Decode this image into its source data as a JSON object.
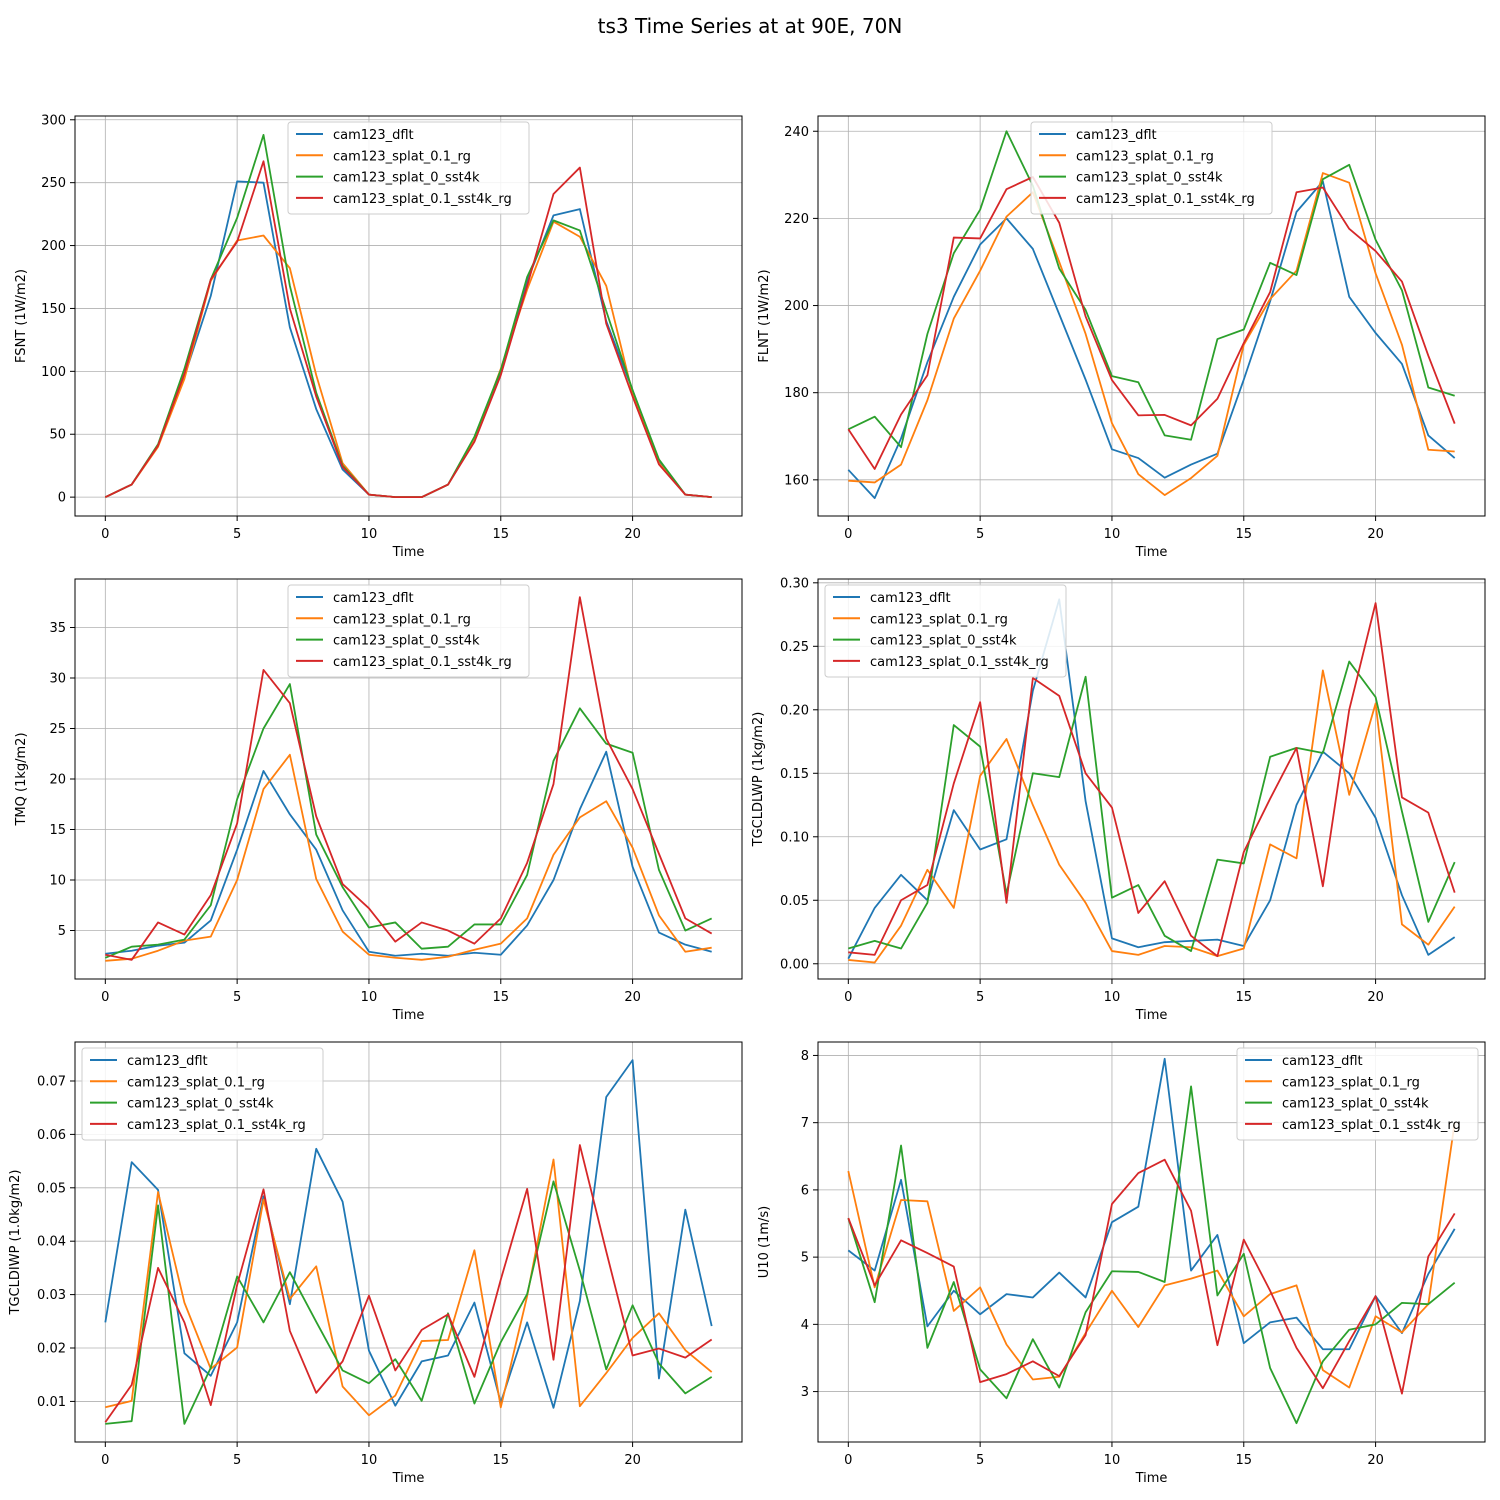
{
  "figure_title": "ts3 Time Series at at 90E, 70N",
  "colors": {
    "cam123_dflt": "#1f77b4",
    "cam123_splat_0.1_rg": "#ff7f0e",
    "cam123_splat_0_sst4k": "#2ca02c",
    "cam123_splat_0.1_sst4k_rg": "#d62728"
  },
  "chart_data": [
    {
      "type": "line",
      "id": "fsnt",
      "xlabel": "Time",
      "ylabel": "FSNT (1W/m2)",
      "xlim": [
        -1.15,
        24.15
      ],
      "ylim": [
        -15,
        303
      ],
      "xticks": [
        0,
        5,
        10,
        15,
        20
      ],
      "yticks": [
        0,
        50,
        100,
        150,
        200,
        250,
        300
      ],
      "legend_position": "upper-center",
      "grid": true,
      "x": [
        0,
        1,
        2,
        3,
        4,
        5,
        6,
        7,
        8,
        9,
        10,
        11,
        12,
        13,
        14,
        15,
        16,
        17,
        18,
        19,
        20,
        21,
        22,
        23
      ],
      "series": [
        {
          "name": "cam123_dflt",
          "values": [
            0,
            10,
            41,
            96,
            160,
            251,
            250,
            135,
            70,
            22,
            2,
            0,
            0,
            10,
            45,
            100,
            172,
            224,
            229,
            140,
            85,
            28,
            2,
            0
          ]
        },
        {
          "name": "cam123_splat_0.1_rg",
          "values": [
            0,
            10,
            40,
            94,
            172,
            204,
            208,
            182,
            97,
            27,
            2,
            0,
            0,
            10,
            45,
            102,
            165,
            219,
            207,
            168,
            82,
            27,
            2,
            0
          ]
        },
        {
          "name": "cam123_splat_0_sst4k",
          "values": [
            0,
            10,
            42,
            102,
            173,
            222,
            288,
            168,
            83,
            25,
            2,
            0,
            0,
            10,
            48,
            101,
            175,
            220,
            212,
            148,
            85,
            30,
            2,
            0
          ]
        },
        {
          "name": "cam123_splat_0.1_sst4k_rg",
          "values": [
            0,
            10,
            41,
            98,
            173,
            203,
            267,
            150,
            80,
            24,
            2,
            0,
            0,
            10,
            44,
            97,
            168,
            241,
            262,
            138,
            80,
            26,
            2,
            0
          ]
        }
      ]
    },
    {
      "type": "line",
      "id": "flnt",
      "xlabel": "Time",
      "ylabel": "FLNT (1W/m2)",
      "xlim": [
        -1.15,
        24.15
      ],
      "ylim": [
        151.7,
        243.5
      ],
      "xticks": [
        0,
        5,
        10,
        15,
        20
      ],
      "yticks": [
        160,
        180,
        200,
        220,
        240
      ],
      "legend_position": "upper-center",
      "grid": true,
      "x": [
        0,
        1,
        2,
        3,
        4,
        5,
        6,
        7,
        8,
        9,
        10,
        11,
        12,
        13,
        14,
        15,
        16,
        17,
        18,
        19,
        20,
        21,
        22,
        23
      ],
      "series": [
        {
          "name": "cam123_dflt",
          "values": [
            162.3,
            155.8,
            169.5,
            187,
            202,
            214,
            220,
            213,
            198,
            183,
            167,
            165,
            160.5,
            163.5,
            166,
            183,
            201,
            221.5,
            228.5,
            202,
            193.7,
            186.6,
            170.2,
            165
          ]
        },
        {
          "name": "cam123_splat_0.1_rg",
          "values": [
            159.8,
            159.4,
            163.5,
            178.3,
            197,
            208,
            220.4,
            226,
            210,
            193.5,
            173,
            161.3,
            156.5,
            160.4,
            165.5,
            191,
            201.5,
            208,
            230.4,
            228.2,
            207.4,
            191,
            166.9,
            166.5
          ]
        },
        {
          "name": "cam123_splat_0_sst4k",
          "values": [
            171.6,
            174.5,
            167.5,
            193.5,
            212,
            222,
            240,
            227.5,
            208.5,
            199,
            183.8,
            182.4,
            170.2,
            169.2,
            192.3,
            194.5,
            209.8,
            207,
            229,
            232.3,
            215.1,
            203.5,
            181.2,
            179.3
          ]
        },
        {
          "name": "cam123_splat_0.1_sst4k_rg",
          "values": [
            171.6,
            162.5,
            175,
            184,
            215.6,
            215.4,
            226.7,
            229.5,
            219,
            197.5,
            182.9,
            174.8,
            174.9,
            172.5,
            178.6,
            191.4,
            203.1,
            226,
            227.1,
            217.6,
            212.5,
            205.5,
            188.5,
            172.9
          ]
        }
      ]
    },
    {
      "type": "line",
      "id": "tmq",
      "xlabel": "Time",
      "ylabel": "TMQ (1kg/m2)",
      "xlim": [
        -1.15,
        24.15
      ],
      "ylim": [
        0.2,
        39.8
      ],
      "xticks": [
        0,
        5,
        10,
        15,
        20
      ],
      "yticks": [
        5,
        10,
        15,
        20,
        25,
        30,
        35
      ],
      "legend_position": "upper-center",
      "grid": true,
      "x": [
        0,
        1,
        2,
        3,
        4,
        5,
        6,
        7,
        8,
        9,
        10,
        11,
        12,
        13,
        14,
        15,
        16,
        17,
        18,
        19,
        20,
        21,
        22,
        23
      ],
      "series": [
        {
          "name": "cam123_dflt",
          "values": [
            2.7,
            3,
            3.5,
            3.8,
            6,
            13,
            20.8,
            16.5,
            13,
            7,
            2.9,
            2.5,
            2.7,
            2.5,
            2.8,
            2.6,
            5.5,
            10,
            17,
            22.7,
            11.3,
            4.8,
            3.6,
            2.9
          ]
        },
        {
          "name": "cam123_splat_0.1_rg",
          "values": [
            2,
            2.2,
            3,
            4,
            4.4,
            10,
            19,
            22.4,
            10.1,
            4.9,
            2.6,
            2.3,
            2.1,
            2.4,
            3.1,
            3.7,
            6.2,
            12.5,
            16.2,
            17.8,
            13.2,
            6.5,
            2.9,
            3.3
          ]
        },
        {
          "name": "cam123_splat_0_sst4k",
          "values": [
            2.3,
            3.4,
            3.6,
            4.1,
            7.5,
            18,
            25,
            29.4,
            14.5,
            9.3,
            5.3,
            5.8,
            3.2,
            3.4,
            5.6,
            5.6,
            10.5,
            21.8,
            27,
            23.5,
            22.6,
            11,
            5,
            6.2
          ]
        },
        {
          "name": "cam123_splat_0.1_sst4k_rg",
          "values": [
            2.6,
            2.1,
            5.8,
            4.6,
            8.5,
            15.6,
            30.8,
            27.5,
            16.3,
            9.6,
            7.2,
            3.9,
            5.8,
            5,
            3.7,
            6.2,
            11.7,
            19.5,
            38,
            24,
            19,
            12.6,
            6.2,
            4.7
          ]
        }
      ]
    },
    {
      "type": "line",
      "id": "tgcldlwp",
      "xlabel": "Time",
      "ylabel": "TGCLDLWP (1kg/m2)",
      "xlim": [
        -1.15,
        24.15
      ],
      "ylim": [
        -0.012,
        0.303
      ],
      "xticks": [
        0,
        5,
        10,
        15,
        20
      ],
      "yticks": [
        0,
        0.05,
        0.1,
        0.15,
        0.2,
        0.25,
        0.3
      ],
      "ytick_labels": [
        "0.00",
        "0.05",
        "0.10",
        "0.15",
        "0.20",
        "0.25",
        "0.30"
      ],
      "legend_position": "upper-left",
      "grid": true,
      "x": [
        0,
        1,
        2,
        3,
        4,
        5,
        6,
        7,
        8,
        9,
        10,
        11,
        12,
        13,
        14,
        15,
        16,
        17,
        18,
        19,
        20,
        21,
        22,
        23
      ],
      "series": [
        {
          "name": "cam123_dflt",
          "values": [
            0.004,
            0.044,
            0.07,
            0.05,
            0.121,
            0.09,
            0.098,
            0.215,
            0.287,
            0.128,
            0.02,
            0.013,
            0.017,
            0.018,
            0.019,
            0.014,
            0.05,
            0.125,
            0.167,
            0.15,
            0.115,
            0.054,
            0.007,
            0.021
          ]
        },
        {
          "name": "cam123_splat_0.1_rg",
          "values": [
            0.003,
            0.001,
            0.03,
            0.074,
            0.044,
            0.148,
            0.177,
            0.125,
            0.078,
            0.048,
            0.01,
            0.007,
            0.014,
            0.013,
            0.006,
            0.012,
            0.094,
            0.083,
            0.231,
            0.133,
            0.205,
            0.031,
            0.015,
            0.045
          ]
        },
        {
          "name": "cam123_splat_0_sst4k",
          "values": [
            0.012,
            0.018,
            0.012,
            0.048,
            0.188,
            0.171,
            0.055,
            0.15,
            0.147,
            0.226,
            0.052,
            0.062,
            0.022,
            0.01,
            0.082,
            0.079,
            0.163,
            0.17,
            0.166,
            0.238,
            0.21,
            0.12,
            0.033,
            0.08
          ]
        },
        {
          "name": "cam123_splat_0.1_sst4k_rg",
          "values": [
            0.009,
            0.007,
            0.05,
            0.062,
            0.142,
            0.206,
            0.048,
            0.225,
            0.211,
            0.15,
            0.123,
            0.04,
            0.065,
            0.022,
            0.006,
            0.088,
            0.13,
            0.17,
            0.061,
            0.2,
            0.284,
            0.131,
            0.119,
            0.056
          ]
        }
      ]
    },
    {
      "type": "line",
      "id": "tgcldiwp",
      "xlabel": "Time",
      "ylabel": "TGCLDIWP (1.0kg/m2)",
      "xlim": [
        -1.15,
        24.15
      ],
      "ylim": [
        0.0024,
        0.0773
      ],
      "xticks": [
        0,
        5,
        10,
        15,
        20
      ],
      "yticks": [
        0.01,
        0.02,
        0.03,
        0.04,
        0.05,
        0.06,
        0.07
      ],
      "ytick_labels": [
        "0.01",
        "0.02",
        "0.03",
        "0.04",
        "0.05",
        "0.06",
        "0.07"
      ],
      "legend_position": "upper-left",
      "grid": true,
      "x": [
        0,
        1,
        2,
        3,
        4,
        5,
        6,
        7,
        8,
        9,
        10,
        11,
        12,
        13,
        14,
        15,
        16,
        17,
        18,
        19,
        20,
        21,
        22,
        23
      ],
      "series": [
        {
          "name": "cam123_dflt",
          "values": [
            0.0248,
            0.0548,
            0.0496,
            0.019,
            0.0148,
            0.0248,
            0.0484,
            0.0282,
            0.0573,
            0.0474,
            0.0195,
            0.0092,
            0.0175,
            0.0186,
            0.0285,
            0.0098,
            0.0248,
            0.0088,
            0.0288,
            0.067,
            0.0739,
            0.0143,
            0.0459,
            0.0241
          ]
        },
        {
          "name": "cam123_splat_0.1_rg",
          "values": [
            0.0089,
            0.0101,
            0.0492,
            0.0285,
            0.0161,
            0.0201,
            0.0478,
            0.0292,
            0.0353,
            0.0128,
            0.0074,
            0.0111,
            0.0213,
            0.0215,
            0.0383,
            0.0089,
            0.0297,
            0.0553,
            0.0091,
            0.0153,
            0.0219,
            0.0265,
            0.0196,
            0.0155
          ]
        },
        {
          "name": "cam123_splat_0_sst4k",
          "values": [
            0.0058,
            0.0063,
            0.0467,
            0.0058,
            0.0163,
            0.0334,
            0.0248,
            0.0342,
            0.0249,
            0.0158,
            0.0134,
            0.0179,
            0.0101,
            0.0265,
            0.0096,
            0.0211,
            0.0301,
            0.0512,
            0.0345,
            0.016,
            0.028,
            0.0171,
            0.0115,
            0.0146
          ]
        },
        {
          "name": "cam123_splat_0.1_sst4k_rg",
          "values": [
            0.0061,
            0.0131,
            0.035,
            0.0248,
            0.0093,
            0.0318,
            0.0497,
            0.0232,
            0.0116,
            0.0175,
            0.0298,
            0.0158,
            0.0234,
            0.0263,
            0.0146,
            0.0328,
            0.0498,
            0.0178,
            0.058,
            0.0381,
            0.0186,
            0.0199,
            0.0182,
            0.0216
          ]
        }
      ]
    },
    {
      "type": "line",
      "id": "u10",
      "xlabel": "Time",
      "ylabel": "U10 (1m/s)",
      "xlim": [
        -1.15,
        24.15
      ],
      "ylim": [
        2.25,
        8.2
      ],
      "xticks": [
        0,
        5,
        10,
        15,
        20
      ],
      "yticks": [
        3,
        4,
        5,
        6,
        7,
        8
      ],
      "legend_position": "upper-right",
      "grid": true,
      "x": [
        0,
        1,
        2,
        3,
        4,
        5,
        6,
        7,
        8,
        9,
        10,
        11,
        12,
        13,
        14,
        15,
        16,
        17,
        18,
        19,
        20,
        21,
        22,
        23
      ],
      "series": [
        {
          "name": "cam123_dflt",
          "values": [
            5.1,
            4.8,
            6.15,
            3.97,
            4.5,
            4.15,
            4.45,
            4.4,
            4.77,
            4.4,
            5.52,
            5.75,
            7.95,
            4.8,
            5.33,
            3.72,
            4.03,
            4.1,
            3.63,
            3.63,
            4.42,
            3.87,
            4.75,
            5.42
          ]
        },
        {
          "name": "cam123_splat_0.1_rg",
          "values": [
            6.28,
            4.55,
            5.85,
            5.83,
            4.2,
            4.55,
            3.7,
            3.18,
            3.22,
            3.87,
            4.5,
            3.96,
            4.58,
            4.68,
            4.8,
            4.12,
            4.45,
            4.58,
            3.32,
            3.06,
            4.12,
            3.88,
            4.3,
            7.0
          ]
        },
        {
          "name": "cam123_splat_0_sst4k",
          "values": [
            5.58,
            4.33,
            6.66,
            3.65,
            4.63,
            3.33,
            2.9,
            3.78,
            3.06,
            4.18,
            4.79,
            4.78,
            4.63,
            7.54,
            4.43,
            5.05,
            3.35,
            2.53,
            3.45,
            3.92,
            4,
            4.32,
            4.3,
            4.62
          ]
        },
        {
          "name": "cam123_splat_0.1_sst4k_rg",
          "values": [
            5.58,
            4.58,
            5.25,
            5.06,
            4.86,
            3.14,
            3.26,
            3.45,
            3.23,
            3.84,
            5.79,
            6.25,
            6.45,
            5.69,
            3.69,
            5.26,
            4.5,
            3.65,
            3.05,
            3.75,
            4.42,
            2.97,
            5.01,
            5.65
          ]
        }
      ]
    }
  ]
}
